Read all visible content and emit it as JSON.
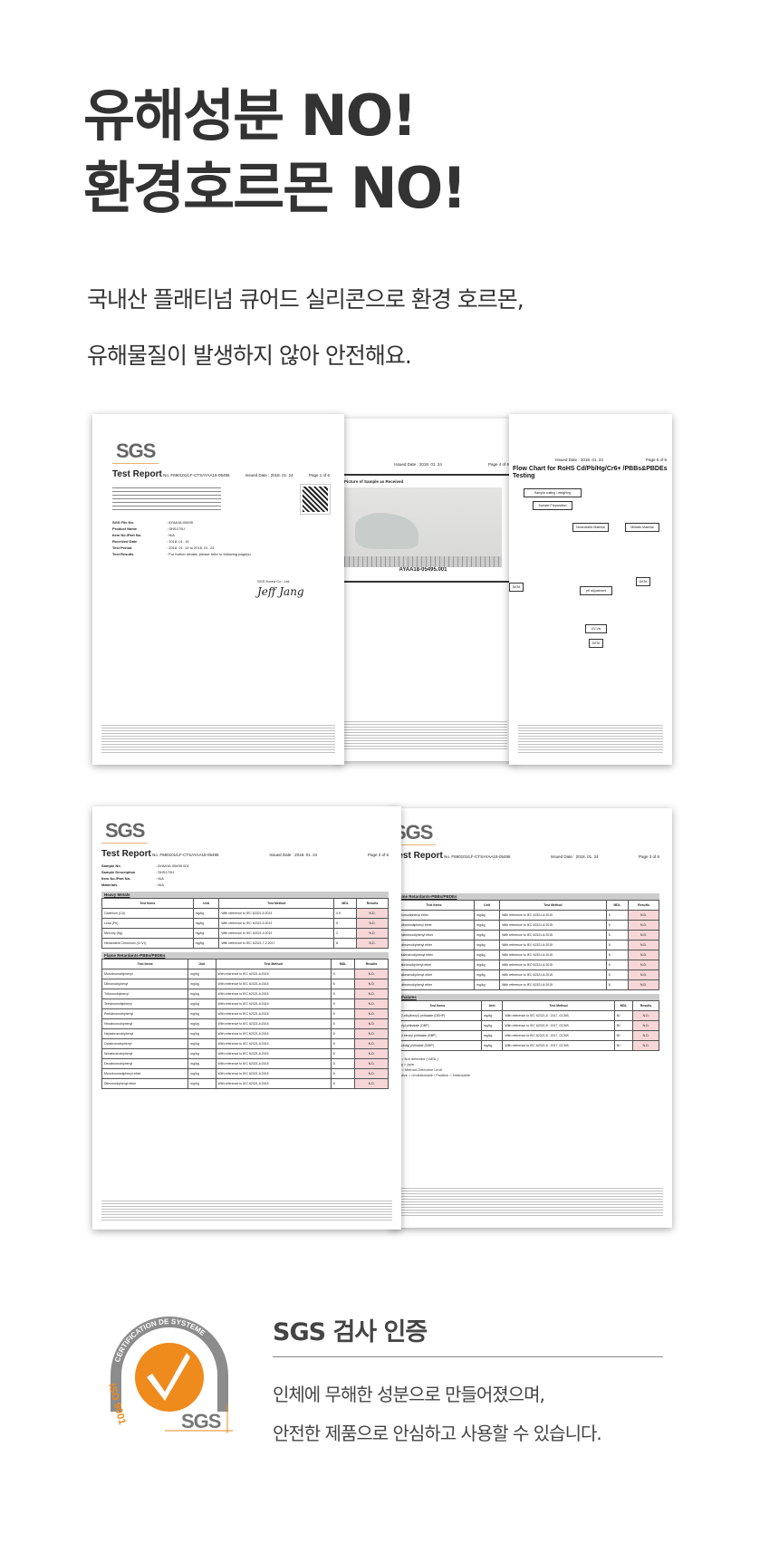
{
  "headline": {
    "line1": "유해성분 NO!",
    "line2": "환경호르몬 NO!"
  },
  "subtitle": {
    "line1": "국내산 플래티넘 큐어드 실리콘으로 환경 호르몬,",
    "line2": "유해물질이 발생하지 않아 안전해요."
  },
  "documents": {
    "logo": "SGS",
    "report_title": "Test Report",
    "report_no": "No. F690101/LF-CTSAYAA18-05495",
    "issued_date": "Issued Date : 2018. 01. 24",
    "page1": "Page 1 of 6",
    "page2": "Page 2 of 6",
    "page3": "Page 3 of 6",
    "page4": "Page 4 of 6",
    "page5": "Page 5 of 6",
    "page1_fields": [
      {
        "k": "SGS File No.",
        "v": ": AYAA18-05495"
      },
      {
        "k": "Product Name",
        "v": ": SHS170U"
      },
      {
        "k": "Item No./Part No.",
        "v": ": N/A"
      },
      {
        "k": "Received Date",
        "v": ": 2018. 01. 19"
      },
      {
        "k": "Test Period",
        "v": ": 2018. 01. 19 to 2018. 01. 24"
      },
      {
        "k": "Test Results",
        "v": ": For further details, please refer to following page(s)"
      }
    ],
    "signer": "SGS Korea Co., Ltd.",
    "signature": "Jeff Jang",
    "picture_caption": "Picture of Sample as Received",
    "sample_id": "AYAA18-05495.001",
    "flow_title": "Flow Chart for RoHS Cd/Pb/Hg/Cr6+ /PBBs&PBDEs Testing",
    "flow_boxes": [
      "Sample cutting / weighing",
      "Sample Preparation",
      "Nonmetallic Material",
      "Metallic Material",
      "pH adjustment",
      "UV-Vis",
      "DATA"
    ],
    "page2_fields": [
      {
        "k": "Sample No.",
        "v": ": AYAA18-05495.001"
      },
      {
        "k": "Sample Description",
        "v": ": SHS170U"
      },
      {
        "k": "Item No./Part No.",
        "v": ": N/A"
      },
      {
        "k": "Materials",
        "v": ": N/A"
      }
    ],
    "heavy_metals": "Heavy Metals",
    "flame_retardants": "Flame Retardants-PBBs/PBDEs",
    "phthalates": "Phthalates",
    "columns": [
      "Test Items",
      "Unit",
      "Test Method",
      "MDL",
      "Results"
    ],
    "metal_rows": [
      {
        "item": "Cadmium (Cd)",
        "unit": "mg/kg",
        "method": "With reference to IEC 62321-5:2013",
        "mdl": "0.5",
        "result": "N.D."
      },
      {
        "item": "Lead (Pb)",
        "unit": "mg/kg",
        "method": "With reference to IEC 62321-5:2013",
        "mdl": "5",
        "result": "N.D."
      },
      {
        "item": "Mercury (Hg)",
        "unit": "mg/kg",
        "method": "With reference to IEC 62321-4:2013",
        "mdl": "2",
        "result": "N.D."
      },
      {
        "item": "Hexavalent Chromium (Cr VI)",
        "unit": "mg/kg",
        "method": "With reference to IEC 62321-7-2:2017",
        "mdl": "8",
        "result": "N.D."
      }
    ],
    "pbb_rows": [
      "Monobromobiphenyl",
      "Dibromobiphenyl",
      "Tribromobiphenyl",
      "Tetrabromobiphenyl",
      "Pentabromobiphenyl",
      "Hexabromobiphenyl",
      "Heptabromobiphenyl",
      "Octabromobiphenyl",
      "Nonabromobiphenyl",
      "Decabromobiphenyl",
      "Monobromodiphenyl ether",
      "Dibromodiphenyl ether"
    ],
    "pbde_rows": [
      "Tribromodiphenyl ether",
      "Tetrabromodiphenyl ether",
      "Pentabromodiphenyl ether",
      "Hexabromodiphenyl ether",
      "Heptabromodiphenyl ether",
      "Octabromodiphenyl ether",
      "Nonabromodiphenyl ether",
      "Decabromodiphenyl ether"
    ],
    "phthalate_rows": [
      "Bis(2-ethylhexyl) phthalate (DEHP)",
      "Dibutyl phthalate (DBP)",
      "Butyl benzyl phthalate (BBP)",
      "Diisobutyl phthalate (DIBP)"
    ],
    "pbb_method": "With reference to IEC 62321-6:2015",
    "pbb_unit": "mg/kg",
    "pbb_mdl": "5",
    "nd": "N.D.",
    "phth_method": "With reference to IEC 62321-8 : 2017, GCMS",
    "phth_mdl": "50",
    "notes": [
      "N.D. = Not detected (<MDL)",
      "mg/kg = ppm",
      "MDL = Method Detection Limit",
      "Negative = Undetectable / Positive = Detectable"
    ]
  },
  "certification": {
    "logo_text": "CERTIFICATION DE SYSTEME",
    "iso": "ISO 9001",
    "logo_sgs": "SGS",
    "title": "SGS 검사 인증",
    "line1": "인체에 무해한 성분으로 만들어졌으며,",
    "line2": "안전한 제품으로 안심하고 사용할 수 있습니다.",
    "colors": {
      "orange": "#ef8a1c",
      "gray": "#8c8c8c"
    }
  }
}
